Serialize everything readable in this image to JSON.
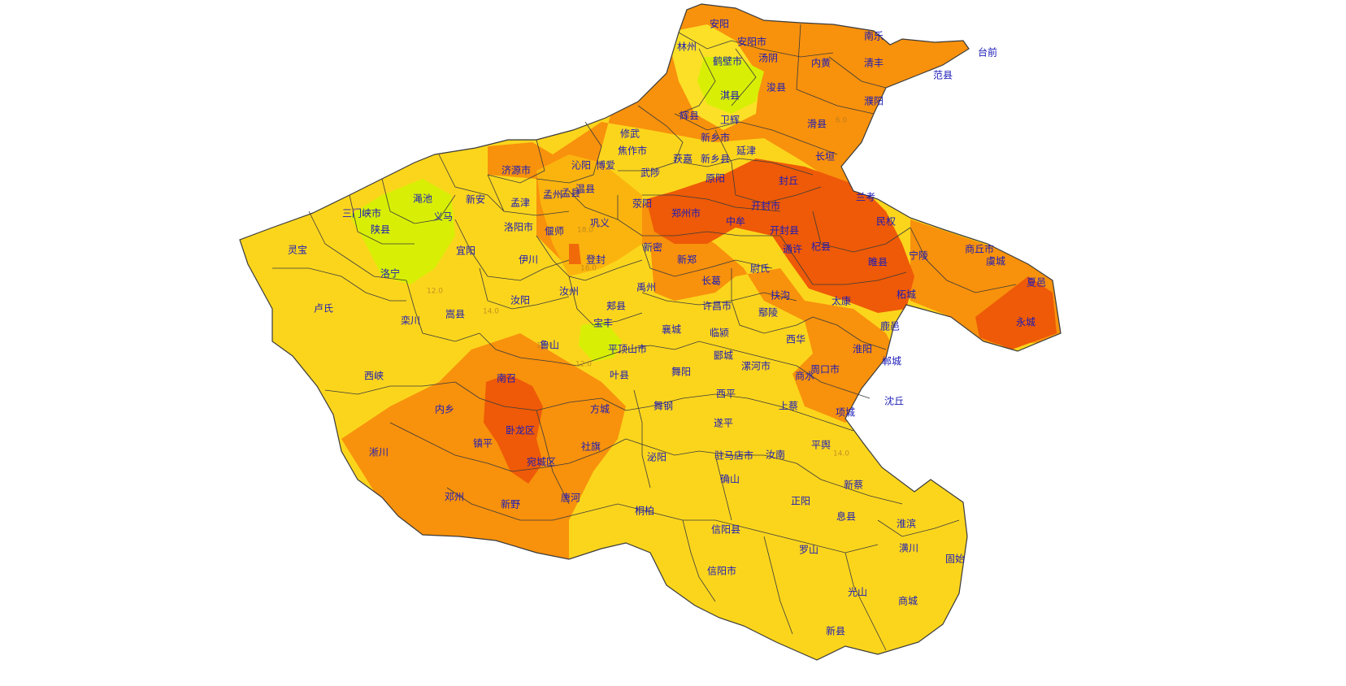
{
  "map": {
    "colors": {
      "light": "#fbe027",
      "yellow": "#fbd51c",
      "amber": "#fbb40e",
      "orange": "#f8910c",
      "deep_orange": "#f06a0a",
      "red": "#ee5a07",
      "green": "#d8ef05",
      "border": "#3b3b3b",
      "label": "#1b1bb8"
    },
    "isolines": [
      "6.0",
      "12.0",
      "16.0",
      "16.0",
      "18.0",
      "12.0",
      "14.0",
      "14.0"
    ],
    "counties": [
      "安阳",
      "安阳市",
      "林州",
      "汤阴",
      "鹤壁市",
      "淇县",
      "浚县",
      "内黄",
      "清丰",
      "南乐",
      "濮阳",
      "范县",
      "台前",
      "辉县",
      "卫辉",
      "滑县",
      "新乡市",
      "延津",
      "长垣",
      "获嘉",
      "新乡县",
      "修武",
      "焦作市",
      "沁阳",
      "博爱",
      "武陟",
      "济源市",
      "原阳",
      "封丘",
      "兰考",
      "温县",
      "孟州",
      "孟县",
      "荥阳",
      "郑州市",
      "中牟",
      "开封市",
      "开封县",
      "民权",
      "渑池",
      "三门峡市",
      "义马",
      "新安",
      "孟津",
      "洛阳市",
      "偃师",
      "巩义",
      "陕县",
      "宜阳",
      "灵宝",
      "洛宁",
      "伊川",
      "登封",
      "新密",
      "新郑",
      "尉氏",
      "通许",
      "杞县",
      "睢县",
      "宁陵",
      "商丘市",
      "虞城",
      "夏邑",
      "永城",
      "柘城",
      "长葛",
      "许昌市",
      "禹州",
      "汝州",
      "汝阳",
      "嵩县",
      "栾川",
      "卢氏",
      "扶沟",
      "太康",
      "鄢陵",
      "鹿邑",
      "郏县",
      "宝丰",
      "襄城",
      "临颍",
      "西华",
      "鲁山",
      "平顶山市",
      "叶县",
      "郾城",
      "漯河市",
      "周口市",
      "淮阳",
      "郸城",
      "西峡",
      "南召",
      "舞阳",
      "商水",
      "内乡",
      "方城",
      "舞钢",
      "西平",
      "上蔡",
      "项城",
      "沈丘",
      "卧龙区",
      "遂平",
      "淅川",
      "镇平",
      "宛城区",
      "社旗",
      "泌阳",
      "驻马店市",
      "汝南",
      "平舆",
      "新蔡",
      "邓州",
      "新野",
      "唐河",
      "确山",
      "桐柏",
      "正阳",
      "息县",
      "淮滨",
      "信阳县",
      "罗山",
      "潢川",
      "固始",
      "信阳市",
      "光山",
      "商城",
      "新县"
    ]
  }
}
